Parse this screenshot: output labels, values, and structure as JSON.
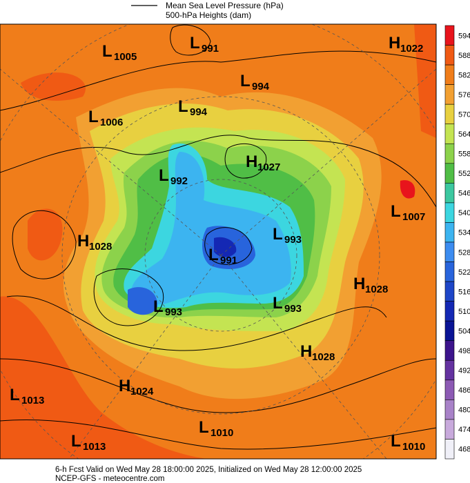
{
  "header": {
    "legend_line_1": "Mean Sea Level Pressure (hPa)",
    "legend_line_2": "500-hPa Heights (dam)"
  },
  "centers": [
    {
      "type": "L",
      "value": 1005
    },
    {
      "type": "L",
      "value": 991
    },
    {
      "type": "H",
      "value": 1022
    },
    {
      "type": "L",
      "value": 994
    },
    {
      "type": "L",
      "value": 994
    },
    {
      "type": "L",
      "value": 1006
    },
    {
      "type": "H",
      "value": 1027
    },
    {
      "type": "L",
      "value": 992
    },
    {
      "type": "L",
      "value": 1007
    },
    {
      "type": "H",
      "value": 1028
    },
    {
      "type": "L",
      "value": 993
    },
    {
      "type": "L",
      "value": 991
    },
    {
      "type": "H",
      "value": 1028
    },
    {
      "type": "L",
      "value": 993
    },
    {
      "type": "L",
      "value": 993
    },
    {
      "type": "H",
      "value": 1028
    },
    {
      "type": "H",
      "value": 1024
    },
    {
      "type": "L",
      "value": 1013
    },
    {
      "type": "L",
      "value": 1010
    },
    {
      "type": "L",
      "value": 1013
    },
    {
      "type": "L",
      "value": 1010
    }
  ],
  "colorbar": {
    "ticks": [
      594,
      588,
      582,
      576,
      570,
      564,
      558,
      552,
      546,
      540,
      534,
      528,
      522,
      516,
      510,
      504,
      498,
      492,
      486,
      480,
      474,
      468
    ],
    "colors": [
      "#e8141c",
      "#f05a14",
      "#f07d1a",
      "#f2a032",
      "#e8d040",
      "#c4e452",
      "#8cd24b",
      "#50be46",
      "#3cc8a0",
      "#3cd6e0",
      "#3cb4f0",
      "#3c8cf0",
      "#2864dc",
      "#1e46c8",
      "#1428b4",
      "#0a1496",
      "#3c148c",
      "#6432a0",
      "#8c5ab4",
      "#a882c8",
      "#c8aadc",
      "#f0f0f8"
    ]
  },
  "footer": {
    "line_1": "6-h Fcst Valid on Wed May 28 18:00:00 2025, Initialized on Wed May 28 12:00:00 2025",
    "line_2": "NCEP-GFS  - meteocentre.com"
  }
}
